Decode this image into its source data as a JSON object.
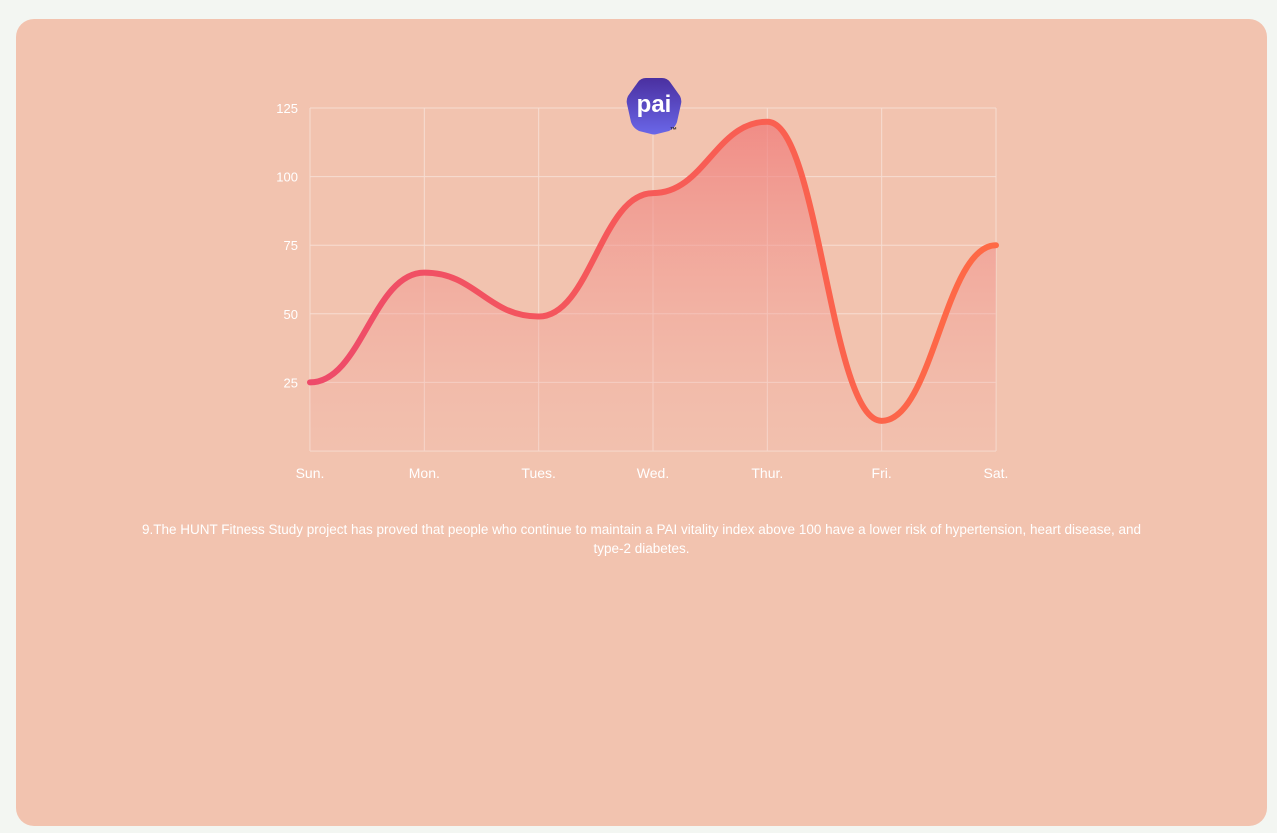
{
  "chart_data": {
    "type": "line",
    "categories": [
      "Sun.",
      "Mon.",
      "Tues.",
      "Wed.",
      "Thur.",
      "Fri.",
      "Sat."
    ],
    "values": [
      25,
      65,
      49,
      94,
      120,
      11,
      75
    ],
    "y_ticks": [
      "25",
      "50",
      "75",
      "100",
      "125"
    ],
    "ylim": [
      0,
      125
    ],
    "grid": true,
    "title": "",
    "xlabel": "",
    "ylabel": "",
    "colors": {
      "line_start": "#ee4b6a",
      "line_end": "#ff6a45",
      "fill": "#f08a86",
      "grid": "#f7ddd2"
    }
  },
  "logo": {
    "text": "pai",
    "trademark": "™",
    "colors": {
      "top": "#4a2fa0",
      "bottom": "#6a67e8"
    }
  },
  "caption": {
    "text": "9.The HUNT Fitness Study project has proved that people who continue to maintain a PAI vitality index above 100 have a lower risk of hypertension, heart disease, and type-2 diabetes."
  },
  "colors": {
    "page_background": "#f3f6f2",
    "card_background": "#f2c3af",
    "text": "#ffffff"
  }
}
